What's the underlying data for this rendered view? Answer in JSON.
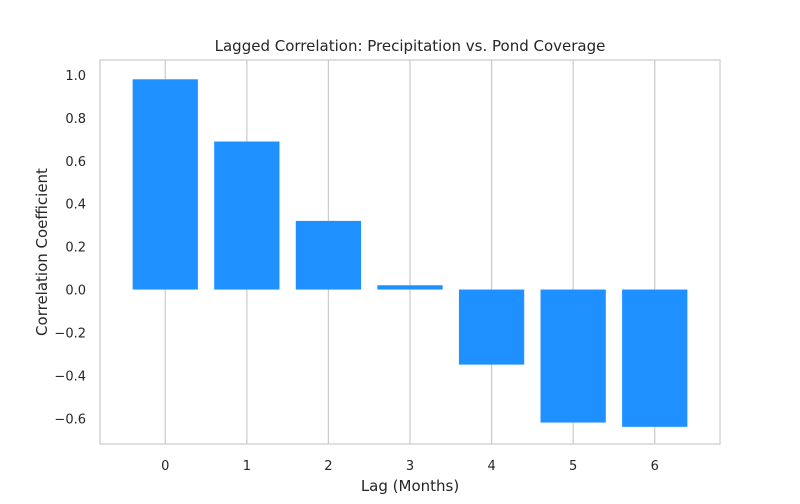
{
  "chart_data": {
    "type": "bar",
    "title": "Lagged Correlation: Precipitation vs. Pond Coverage",
    "xlabel": "Lag (Months)",
    "ylabel": "Correlation Coefficient",
    "categories": [
      "0",
      "1",
      "2",
      "3",
      "4",
      "5",
      "6"
    ],
    "values": [
      0.98,
      0.69,
      0.32,
      0.02,
      -0.35,
      -0.62,
      -0.64
    ],
    "ylim": [
      -0.72,
      1.07
    ],
    "yticks": [
      "−0.6",
      "−0.4",
      "−0.2",
      "0.0",
      "0.2",
      "0.4",
      "0.6",
      "0.8",
      "1.0"
    ],
    "ytick_values": [
      -0.6,
      -0.4,
      -0.2,
      0.0,
      0.2,
      0.4,
      0.6,
      0.8,
      1.0
    ],
    "grid": "x",
    "bar_color": "#1e90ff",
    "grid_color": "#cccccc",
    "frame_color": "#cccccc"
  }
}
